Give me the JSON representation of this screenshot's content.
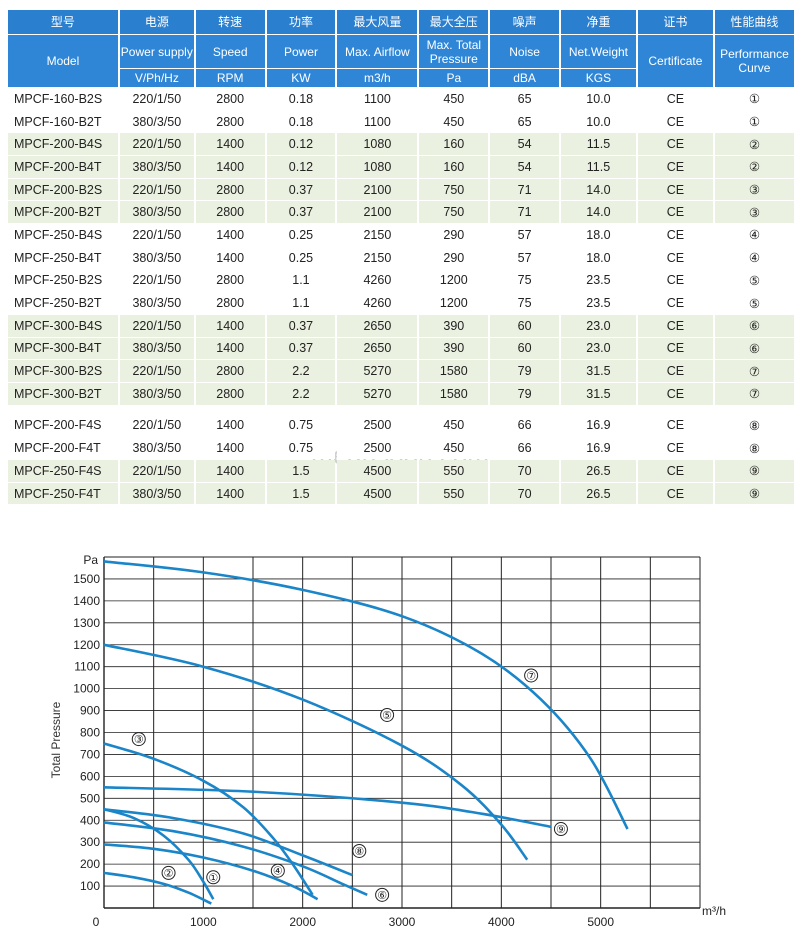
{
  "watermark": "meansoon.com",
  "table": {
    "header_cn": [
      "型号",
      "电源",
      "转速",
      "功率",
      "最大风量",
      "最大全压",
      "噪声",
      "净重",
      "证书",
      "性能曲线"
    ],
    "header_en": [
      "Model",
      "Power supply",
      "Speed",
      "Power",
      "Max. Airflow",
      "Max. Total Pressure",
      "Noise",
      "Net.Weight",
      "Certificate",
      "Performance Curve"
    ],
    "header_unit": [
      "V/Ph/Hz",
      "RPM",
      "KW",
      "m3/h",
      "Pa",
      "dBA",
      "KGS"
    ],
    "rows": [
      [
        "MPCF-160-B2S",
        "220/1/50",
        "2800",
        "0.18",
        "1100",
        "450",
        "65",
        "10.0",
        "CE",
        "①"
      ],
      [
        "MPCF-160-B2T",
        "380/3/50",
        "2800",
        "0.18",
        "1100",
        "450",
        "65",
        "10.0",
        "CE",
        "①"
      ],
      [
        "MPCF-200-B4S",
        "220/1/50",
        "1400",
        "0.12",
        "1080",
        "160",
        "54",
        "11.5",
        "CE",
        "②"
      ],
      [
        "MPCF-200-B4T",
        "380/3/50",
        "1400",
        "0.12",
        "1080",
        "160",
        "54",
        "11.5",
        "CE",
        "②"
      ],
      [
        "MPCF-200-B2S",
        "220/1/50",
        "2800",
        "0.37",
        "2100",
        "750",
        "71",
        "14.0",
        "CE",
        "③"
      ],
      [
        "MPCF-200-B2T",
        "380/3/50",
        "2800",
        "0.37",
        "2100",
        "750",
        "71",
        "14.0",
        "CE",
        "③"
      ],
      [
        "MPCF-250-B4S",
        "220/1/50",
        "1400",
        "0.25",
        "2150",
        "290",
        "57",
        "18.0",
        "CE",
        "④"
      ],
      [
        "MPCF-250-B4T",
        "380/3/50",
        "1400",
        "0.25",
        "2150",
        "290",
        "57",
        "18.0",
        "CE",
        "④"
      ],
      [
        "MPCF-250-B2S",
        "220/1/50",
        "2800",
        "1.1",
        "4260",
        "1200",
        "75",
        "23.5",
        "CE",
        "⑤"
      ],
      [
        "MPCF-250-B2T",
        "380/3/50",
        "2800",
        "1.1",
        "4260",
        "1200",
        "75",
        "23.5",
        "CE",
        "⑤"
      ],
      [
        "MPCF-300-B4S",
        "220/1/50",
        "1400",
        "0.37",
        "2650",
        "390",
        "60",
        "23.0",
        "CE",
        "⑥"
      ],
      [
        "MPCF-300-B4T",
        "380/3/50",
        "1400",
        "0.37",
        "2650",
        "390",
        "60",
        "23.0",
        "CE",
        "⑥"
      ],
      [
        "MPCF-300-B2S",
        "220/1/50",
        "2800",
        "2.2",
        "5270",
        "1580",
        "79",
        "31.5",
        "CE",
        "⑦"
      ],
      [
        "MPCF-300-B2T",
        "380/3/50",
        "2800",
        "2.2",
        "5270",
        "1580",
        "79",
        "31.5",
        "CE",
        "⑦"
      ],
      [
        "MPCF-200-F4S",
        "220/1/50",
        "1400",
        "0.75",
        "2500",
        "450",
        "66",
        "16.9",
        "CE",
        "⑧"
      ],
      [
        "MPCF-200-F4T",
        "380/3/50",
        "1400",
        "0.75",
        "2500",
        "450",
        "66",
        "16.9",
        "CE",
        "⑧"
      ],
      [
        "MPCF-250-F4S",
        "220/1/50",
        "1400",
        "1.5",
        "4500",
        "550",
        "70",
        "26.5",
        "CE",
        "⑨"
      ],
      [
        "MPCF-250-F4T",
        "380/3/50",
        "1400",
        "1.5",
        "4500",
        "550",
        "70",
        "26.5",
        "CE",
        "⑨"
      ]
    ],
    "row_colors": [
      "white",
      "white",
      "green",
      "green",
      "green",
      "green",
      "white",
      "white",
      "white",
      "white",
      "green",
      "green",
      "green",
      "green",
      "white",
      "white",
      "green",
      "green"
    ],
    "colors": {
      "header": "#2f86d6",
      "green_row": "#eaf1e0"
    }
  },
  "chart_data": {
    "type": "line",
    "ylabel": "Total Pressure",
    "y_unit": "Pa",
    "x_unit": "m³/h",
    "xlim": [
      0,
      6000
    ],
    "ylim": [
      0,
      1600
    ],
    "x_ticks": [
      "0",
      "1000",
      "2000",
      "3000",
      "4000",
      "5000"
    ],
    "y_ticks": [
      "100",
      "200",
      "300",
      "400",
      "500",
      "600",
      "700",
      "800",
      "900",
      "1000",
      "1100",
      "1200",
      "1300",
      "1400",
      "1500"
    ],
    "grid": true,
    "line_color": "#1a85c8",
    "series": [
      {
        "name": "①",
        "x": [
          0,
          300,
          600,
          850,
          1000,
          1100
        ],
        "y": [
          450,
          410,
          330,
          220,
          120,
          40
        ]
      },
      {
        "name": "②",
        "x": [
          0,
          300,
          600,
          850,
          1080
        ],
        "y": [
          160,
          140,
          110,
          70,
          20
        ]
      },
      {
        "name": "③",
        "x": [
          0,
          500,
          1000,
          1400,
          1700,
          1900,
          2100
        ],
        "y": [
          750,
          680,
          580,
          460,
          320,
          200,
          60
        ]
      },
      {
        "name": "④",
        "x": [
          0,
          500,
          1000,
          1500,
          1900,
          2150
        ],
        "y": [
          290,
          270,
          230,
          170,
          100,
          40
        ]
      },
      {
        "name": "⑤",
        "x": [
          0,
          1000,
          2000,
          3000,
          3600,
          4000,
          4260
        ],
        "y": [
          1200,
          1100,
          950,
          740,
          560,
          380,
          220
        ]
      },
      {
        "name": "⑥",
        "x": [
          0,
          700,
          1400,
          2000,
          2400,
          2650
        ],
        "y": [
          390,
          350,
          280,
          190,
          110,
          60
        ]
      },
      {
        "name": "⑦",
        "x": [
          0,
          1000,
          2000,
          3000,
          3800,
          4400,
          4900,
          5270
        ],
        "y": [
          1580,
          1530,
          1450,
          1330,
          1160,
          950,
          680,
          360
        ]
      },
      {
        "name": "⑧",
        "x": [
          0,
          700,
          1400,
          2000,
          2500
        ],
        "y": [
          450,
          410,
          340,
          240,
          150
        ]
      },
      {
        "name": "⑨",
        "x": [
          0,
          1500,
          3000,
          3800,
          4500
        ],
        "y": [
          550,
          530,
          480,
          430,
          370
        ]
      }
    ],
    "marker_labels": [
      {
        "name": "①",
        "x": 1100,
        "y": 140
      },
      {
        "name": "②",
        "x": 650,
        "y": 160
      },
      {
        "name": "③",
        "x": 350,
        "y": 770
      },
      {
        "name": "④",
        "x": 1750,
        "y": 170
      },
      {
        "name": "⑤",
        "x": 2850,
        "y": 880
      },
      {
        "name": "⑥",
        "x": 2800,
        "y": 60
      },
      {
        "name": "⑦",
        "x": 4300,
        "y": 1060
      },
      {
        "name": "⑧",
        "x": 2570,
        "y": 260
      },
      {
        "name": "⑨",
        "x": 4600,
        "y": 360
      }
    ]
  }
}
